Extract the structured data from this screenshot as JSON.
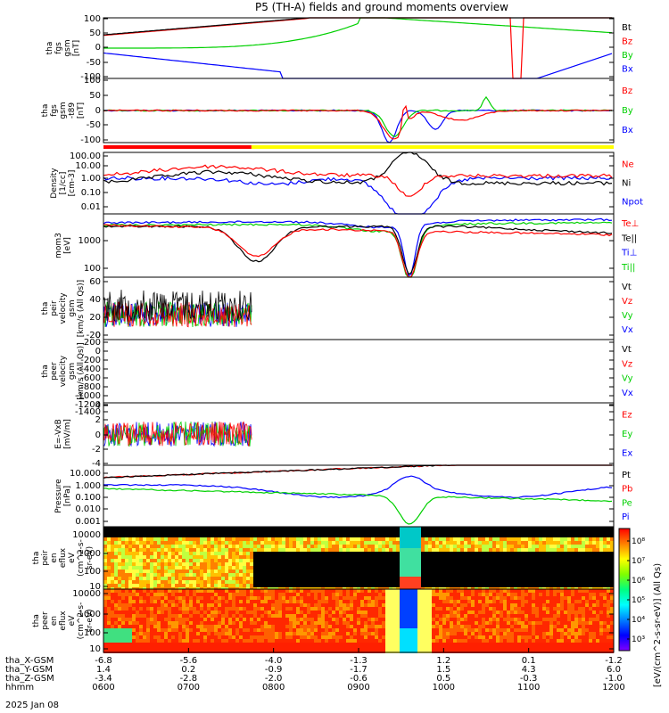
{
  "title": "P5 (TH-A) fields and ground moments overview",
  "colors": {
    "black": "#000000",
    "red": "#ff0000",
    "green": "#00d000",
    "blue": "#0000ff",
    "yellow": "#ffff00"
  },
  "chart_data": [
    {
      "id": "fgs_gsm",
      "type": "line",
      "ylabel": [
        "tha",
        "fgs",
        "gsm",
        "[nT]"
      ],
      "ylim": [
        -100,
        100
      ],
      "yticks": [
        "100",
        "50",
        "0",
        "-50",
        "-100"
      ],
      "series": [
        {
          "name": "Bt",
          "color": "#000000"
        },
        {
          "name": "Bz",
          "color": "#ff0000"
        },
        {
          "name": "By",
          "color": "#00d000"
        },
        {
          "name": "Bx",
          "color": "#0000ff"
        }
      ]
    },
    {
      "id": "fgs_gsm_dc",
      "type": "line",
      "ylabel": [
        "tha",
        "fgs",
        "gsm",
        "-t89",
        "[nT]"
      ],
      "ylim": [
        -120,
        120
      ],
      "yticks": [
        "100",
        "50",
        "0",
        "-50",
        "-100"
      ],
      "series": [
        {
          "name": "Bz",
          "color": "#ff0000"
        },
        {
          "name": "By",
          "color": "#00d000"
        },
        {
          "name": "Bx",
          "color": "#0000ff"
        }
      ]
    },
    {
      "id": "density",
      "type": "line",
      "ylabel": [
        "Density",
        "[1/cc]",
        "[cm-3]"
      ],
      "scale": "log",
      "yticks": [
        "100.00",
        "10.00",
        "1.00",
        "0.10",
        "0.01"
      ],
      "series": [
        {
          "name": "Ne",
          "color": "#ff0000"
        },
        {
          "name": "Ni",
          "color": "#000000"
        },
        {
          "name": "Npot",
          "color": "#0000ff"
        }
      ]
    },
    {
      "id": "temperature",
      "type": "line",
      "ylabel": [
        "mom3",
        "[eV]"
      ],
      "scale": "log",
      "yticks": [
        "1000",
        "100"
      ],
      "series": [
        {
          "name": "Te⊥",
          "color": "#ff0000"
        },
        {
          "name": "Te||",
          "color": "#000000"
        },
        {
          "name": "Ti⊥",
          "color": "#0000ff"
        },
        {
          "name": "Ti||",
          "color": "#00d000"
        }
      ]
    },
    {
      "id": "peir_velocity",
      "type": "line",
      "ylabel": [
        "tha",
        "peir",
        "velocity",
        "gsm",
        "[km/s (All Qs)]"
      ],
      "ylim": [
        -30,
        60
      ],
      "yticks": [
        "60",
        "40",
        "20",
        "0",
        "-20"
      ],
      "series": [
        {
          "name": "Vt",
          "color": "#000000"
        },
        {
          "name": "Vz",
          "color": "#ff0000"
        },
        {
          "name": "Vy",
          "color": "#00d000"
        },
        {
          "name": "Vx",
          "color": "#0000ff"
        }
      ]
    },
    {
      "id": "peer_velocity",
      "type": "line",
      "ylabel": [
        "tha",
        "peer",
        "velocity",
        "gsm",
        "[km/s (All Qs)]"
      ],
      "ylim": [
        -1500,
        200
      ],
      "yticks": [
        "200",
        "0",
        "-200",
        "-400",
        "-600",
        "-800",
        "-1000",
        "-1200",
        "-1400"
      ],
      "series": [
        {
          "name": "Vt",
          "color": "#000000"
        },
        {
          "name": "Vz",
          "color": "#ff0000"
        },
        {
          "name": "Vy",
          "color": "#00d000"
        },
        {
          "name": "Vx",
          "color": "#0000ff"
        }
      ]
    },
    {
      "id": "efield",
      "type": "line",
      "ylabel": [
        "E=-VxB",
        "[mV/m]"
      ],
      "ylim": [
        -4,
        4
      ],
      "yticks": [
        "4",
        "2",
        "0",
        "-2",
        "-4"
      ],
      "series": [
        {
          "name": "Ez",
          "color": "#ff0000"
        },
        {
          "name": "Ey",
          "color": "#00d000"
        },
        {
          "name": "Ex",
          "color": "#0000ff"
        }
      ]
    },
    {
      "id": "pressure",
      "type": "line",
      "ylabel": [
        "Pressure",
        "[nPa]"
      ],
      "scale": "log",
      "yticks": [
        "10.000",
        "1.000",
        "0.100",
        "0.010",
        "0.001"
      ],
      "series": [
        {
          "name": "Pt",
          "color": "#000000"
        },
        {
          "name": "Pb",
          "color": "#ff0000"
        },
        {
          "name": "Pe",
          "color": "#00d000"
        },
        {
          "name": "Pi",
          "color": "#0000ff"
        }
      ]
    },
    {
      "id": "peir_spectrogram",
      "type": "heatmap",
      "ylabel": [
        "tha",
        "peir",
        "en",
        "eflux",
        "eV",
        "(cm^2-s-",
        "sr-eV)"
      ],
      "yticks": [
        "10000",
        "1000",
        "100",
        "10"
      ]
    },
    {
      "id": "peer_spectrogram",
      "type": "heatmap",
      "ylabel": [
        "tha",
        "peer",
        "en",
        "eflux",
        "eV",
        "(cm^2-s-",
        "sr-eV)"
      ],
      "yticks": [
        "10000",
        "1000",
        "100",
        "10"
      ]
    }
  ],
  "colorbar": {
    "ticks": [
      "10⁸",
      "10⁷",
      "10⁶",
      "10⁵",
      "10⁴",
      "10³"
    ],
    "label": "[eV/(cm^2-s-sr-eV)] (All Qs)"
  },
  "xaxis": {
    "rows": [
      {
        "label": "tha_X-GSM",
        "values": [
          "-6.8",
          "-5.6",
          "-4.0",
          "-1.3",
          "1.2",
          "0.1",
          "-1.2"
        ]
      },
      {
        "label": "tha_Y-GSM",
        "values": [
          "1.4",
          "0.2",
          "-0.9",
          "-1.7",
          "1.5",
          "4.3",
          "6.0"
        ]
      },
      {
        "label": "tha_Z-GSM",
        "values": [
          "-3.4",
          "-2.8",
          "-2.0",
          "-0.6",
          "0.5",
          "-0.3",
          "-1.0"
        ]
      },
      {
        "label": "hhmm",
        "values": [
          "0600",
          "0700",
          "0800",
          "0900",
          "1000",
          "1100",
          "1200"
        ]
      }
    ],
    "date": "2025 Jan 08"
  }
}
